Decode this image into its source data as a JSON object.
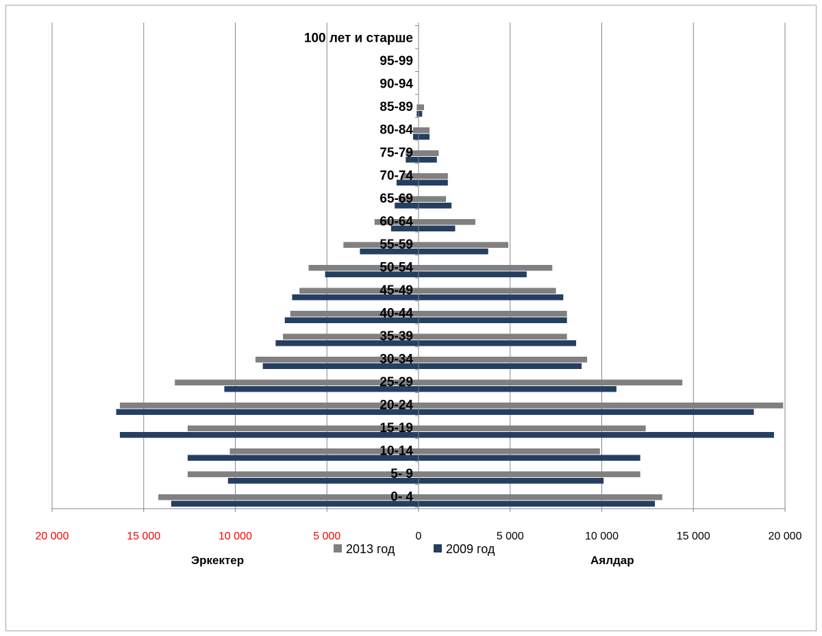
{
  "chart_data": {
    "type": "bar",
    "orientation": "horizontal",
    "categories": [
      "0- 4",
      "5- 9",
      "10-14",
      "15-19",
      "20-24",
      "25-29",
      "30-34",
      "35-39",
      "40-44",
      "45-49",
      "50-54",
      "55-59",
      "60-64",
      "65-69",
      "70-74",
      "75-79",
      "80-84",
      "85-89",
      "90-94",
      "95-99",
      "100 лет и старше"
    ],
    "series": [
      {
        "name": "2013 год",
        "color": "#808080",
        "male": [
          14200,
          12600,
          10300,
          12600,
          16300,
          13300,
          8900,
          7400,
          7000,
          6500,
          6000,
          4100,
          2400,
          1100,
          900,
          700,
          300,
          100,
          0,
          0,
          0
        ],
        "female": [
          13300,
          12100,
          9900,
          12400,
          19900,
          14400,
          9200,
          8100,
          8100,
          7500,
          7300,
          4900,
          3100,
          1500,
          1600,
          1100,
          600,
          300,
          0,
          0,
          0
        ]
      },
      {
        "name": "2009 год",
        "color": "#243f60",
        "male": [
          13500,
          10400,
          12600,
          16300,
          16500,
          10600,
          8500,
          7800,
          7300,
          6900,
          5100,
          3200,
          1500,
          1300,
          1200,
          700,
          300,
          100,
          0,
          0,
          0
        ],
        "female": [
          12900,
          10100,
          12100,
          19400,
          18300,
          10800,
          8900,
          8600,
          8100,
          7900,
          5900,
          3800,
          2000,
          1800,
          1600,
          1000,
          600,
          200,
          0,
          0,
          0
        ]
      }
    ],
    "x_ticks": [
      "20 000",
      "15 000",
      "10 000",
      "5 000",
      "0",
      "5 000",
      "10 000",
      "15 000",
      "20 000"
    ],
    "x_tick_colors": [
      "#ff0000",
      "#ff0000",
      "#ff0000",
      "#ff0000",
      "#000000",
      "#000000",
      "#000000",
      "#000000",
      "#000000"
    ],
    "xlim": [
      -20000,
      20000
    ],
    "left_label": "Эркектер",
    "right_label": "Аялдар",
    "grid": true,
    "legend_position": "bottom"
  }
}
